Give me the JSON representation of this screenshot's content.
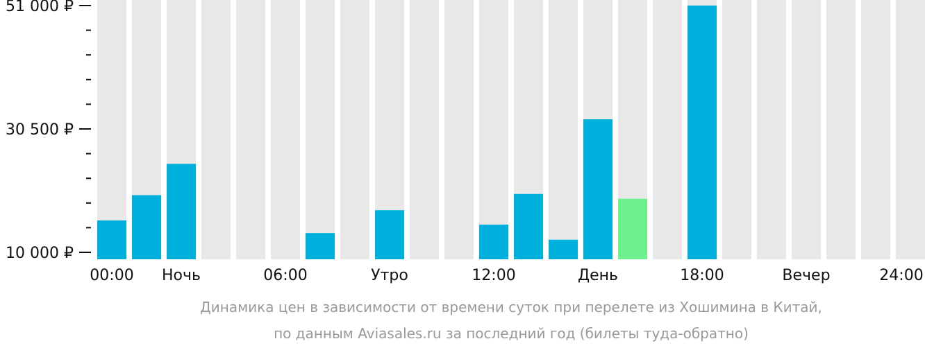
{
  "chart_data": {
    "type": "bar",
    "categories": [
      "00:00",
      "01:00",
      "02:00",
      "03:00",
      "04:00",
      "05:00",
      "06:00",
      "07:00",
      "08:00",
      "09:00",
      "10:00",
      "11:00",
      "12:00",
      "13:00",
      "14:00",
      "15:00",
      "16:00",
      "17:00",
      "18:00",
      "19:00",
      "20:00",
      "21:00",
      "22:00",
      "23:00"
    ],
    "values": [
      15300,
      19500,
      24700,
      null,
      null,
      null,
      13200,
      null,
      17000,
      null,
      null,
      14600,
      19700,
      12100,
      32100,
      18900,
      null,
      51000,
      null,
      null,
      null,
      null,
      null,
      null
    ],
    "highlight_index": 15,
    "ylim": [
      10000,
      51000
    ],
    "y_ticks": [
      {
        "value": 51000,
        "label": "51 000 ₽"
      },
      {
        "value": 30500,
        "label": "30 500 ₽"
      },
      {
        "value": 10000,
        "label": "10 000 ₽"
      }
    ],
    "x_labels": [
      "00:00",
      "Ночь",
      "06:00",
      "Утро",
      "12:00",
      "День",
      "18:00",
      "Вечер",
      "24:00"
    ],
    "colors": {
      "bar": "#00b0dc",
      "highlight": "#6ef08c",
      "background_bar": "#e8e8e8",
      "axis": "#111111"
    }
  },
  "caption": {
    "line1": "Динамика цен в зависимости от времени суток при перелете из Хошимина в Китай,",
    "line2": "по данным Aviasales.ru за последний год (билеты туда-обратно)"
  }
}
